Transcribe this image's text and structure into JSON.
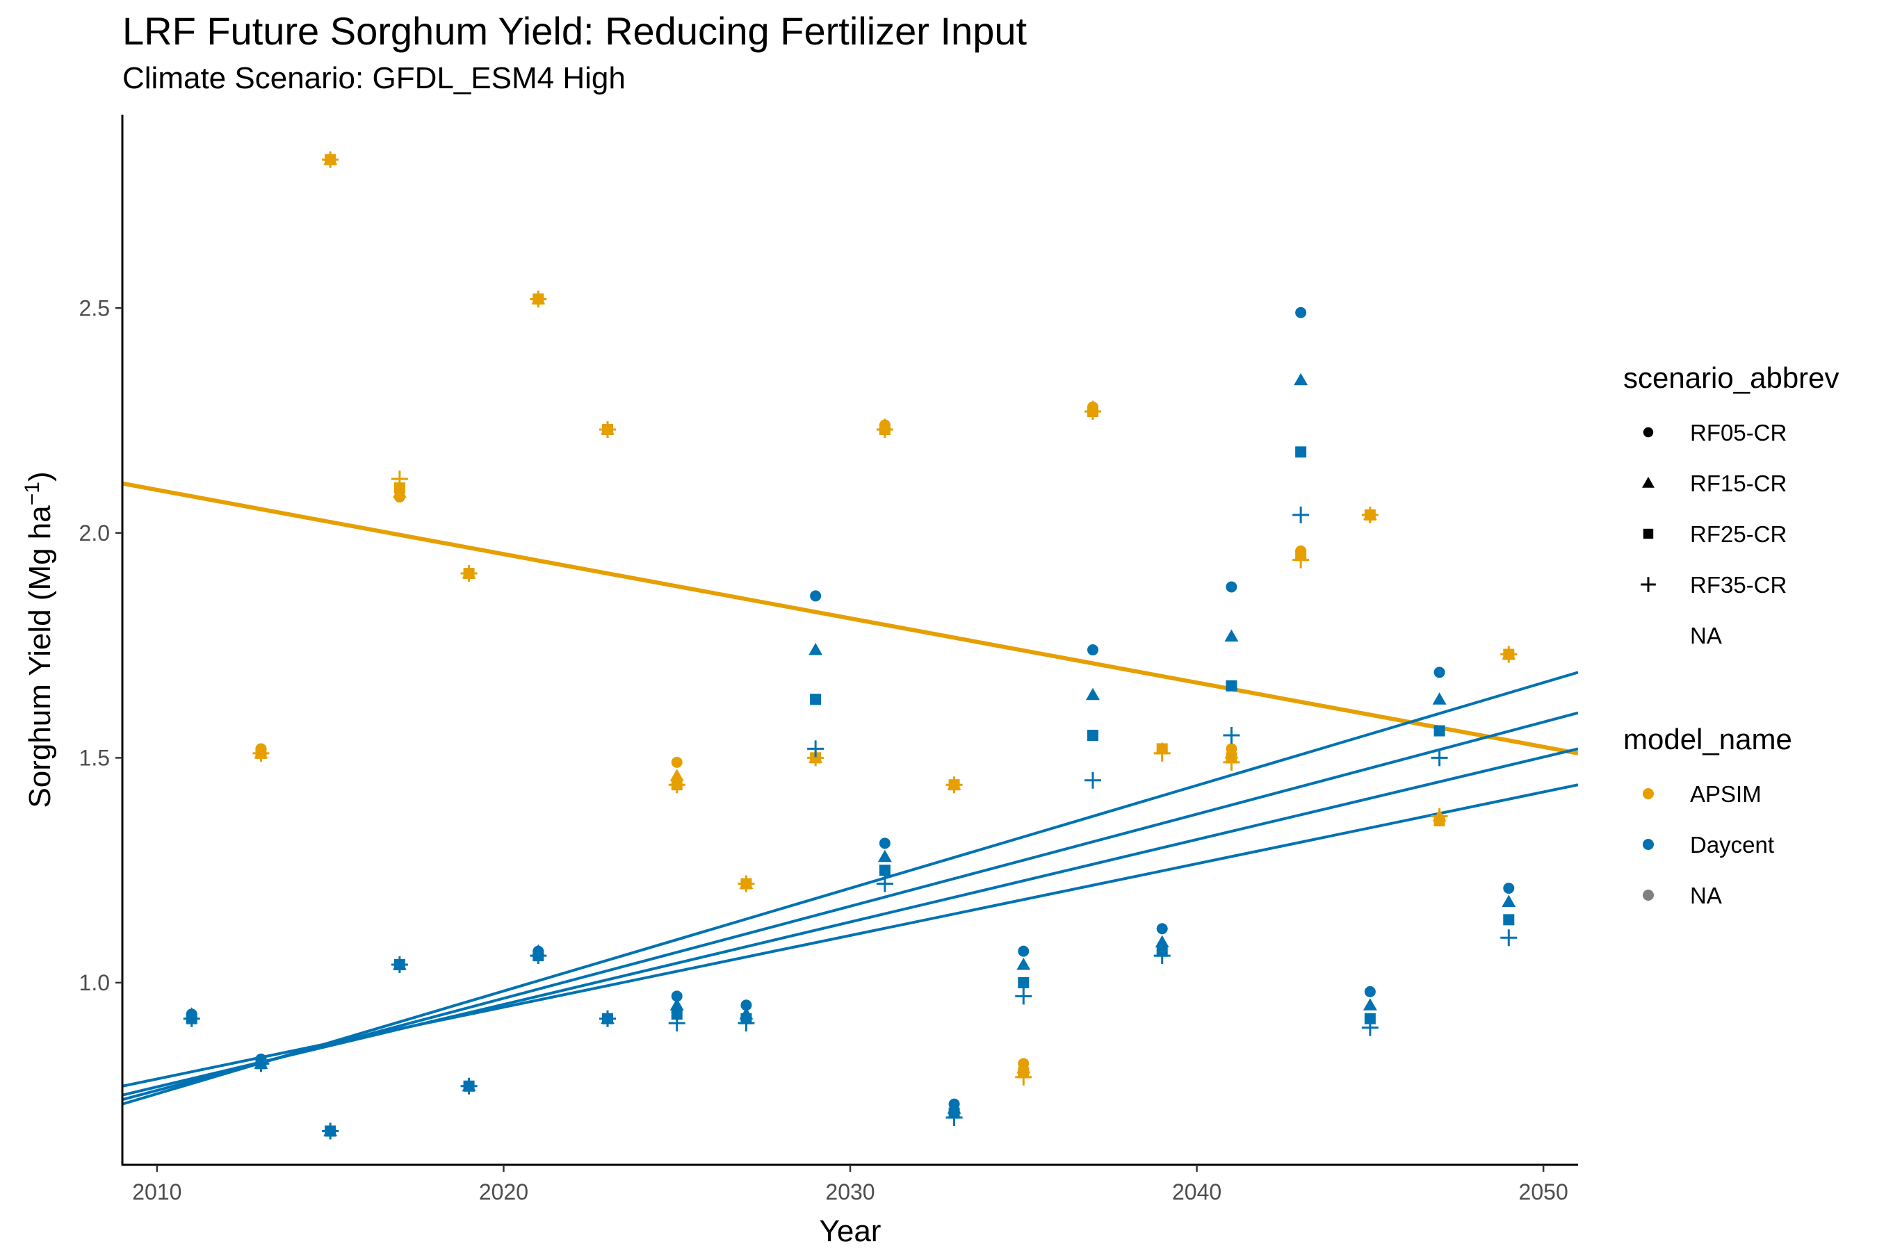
{
  "chart_data": {
    "type": "scatter",
    "title": "LRF Future Sorghum Yield: Reducing Fertilizer Input",
    "subtitle": "Climate Scenario: GFDL_ESM4 High",
    "xlabel": "Year",
    "ylabel_main": "Sorghum Yield (Mg ha",
    "ylabel_sup": "−1",
    "ylabel_close": ")",
    "xlim": [
      2009,
      2051
    ],
    "ylim": [
      0.595,
      2.93
    ],
    "xticks": [
      2010,
      2020,
      2030,
      2040,
      2050
    ],
    "yticks": [
      1.0,
      1.5,
      2.0,
      2.5
    ],
    "ytick_labels": [
      "1.0",
      "1.5",
      "2.0",
      "2.5"
    ],
    "grid": false,
    "legend_position": "right",
    "colors": {
      "APSIM": "#E69F00",
      "Daycent": "#0072B2",
      "NA": "#808080"
    },
    "shape_legend": {
      "title": "scenario_abbrev",
      "items": [
        {
          "label": "RF05-CR",
          "shape": "circle"
        },
        {
          "label": "RF15-CR",
          "shape": "triangle"
        },
        {
          "label": "RF25-CR",
          "shape": "square"
        },
        {
          "label": "RF35-CR",
          "shape": "plus"
        },
        {
          "label": "NA",
          "shape": "none"
        }
      ]
    },
    "color_legend": {
      "title": "model_name",
      "items": [
        {
          "label": "APSIM",
          "color": "#E69F00"
        },
        {
          "label": "Daycent",
          "color": "#0072B2"
        },
        {
          "label": "NA",
          "color": "#808080"
        }
      ]
    },
    "series": [
      {
        "model": "APSIM",
        "scenario": "RF05-CR",
        "shape": "circle",
        "points": [
          [
            2013,
            1.52
          ],
          [
            2015,
            2.83
          ],
          [
            2017,
            2.08
          ],
          [
            2019,
            1.91
          ],
          [
            2021,
            2.52
          ],
          [
            2023,
            2.23
          ],
          [
            2025,
            1.49
          ],
          [
            2027,
            1.22
          ],
          [
            2029,
            1.5
          ],
          [
            2031,
            2.24
          ],
          [
            2033,
            1.44
          ],
          [
            2035,
            0.82
          ],
          [
            2037,
            2.28
          ],
          [
            2039,
            1.52
          ],
          [
            2041,
            1.52
          ],
          [
            2043,
            1.96
          ],
          [
            2045,
            2.04
          ],
          [
            2047,
            1.36
          ],
          [
            2049,
            1.73
          ]
        ]
      },
      {
        "model": "APSIM",
        "scenario": "RF15-CR",
        "shape": "triangle",
        "points": [
          [
            2013,
            1.51
          ],
          [
            2015,
            2.83
          ],
          [
            2017,
            2.09
          ],
          [
            2019,
            1.91
          ],
          [
            2021,
            2.52
          ],
          [
            2023,
            2.23
          ],
          [
            2025,
            1.46
          ],
          [
            2027,
            1.22
          ],
          [
            2029,
            1.5
          ],
          [
            2031,
            2.24
          ],
          [
            2033,
            1.44
          ],
          [
            2035,
            0.81
          ],
          [
            2037,
            2.28
          ],
          [
            2039,
            1.52
          ],
          [
            2041,
            1.51
          ],
          [
            2043,
            1.95
          ],
          [
            2045,
            2.04
          ],
          [
            2047,
            1.37
          ],
          [
            2049,
            1.73
          ]
        ]
      },
      {
        "model": "APSIM",
        "scenario": "RF25-CR",
        "shape": "square",
        "points": [
          [
            2013,
            1.51
          ],
          [
            2015,
            2.83
          ],
          [
            2017,
            2.1
          ],
          [
            2019,
            1.91
          ],
          [
            2021,
            2.52
          ],
          [
            2023,
            2.23
          ],
          [
            2025,
            1.44
          ],
          [
            2027,
            1.22
          ],
          [
            2029,
            1.5
          ],
          [
            2031,
            2.23
          ],
          [
            2033,
            1.44
          ],
          [
            2035,
            0.8
          ],
          [
            2037,
            2.27
          ],
          [
            2039,
            1.52
          ],
          [
            2041,
            1.5
          ],
          [
            2043,
            1.95
          ],
          [
            2045,
            2.04
          ],
          [
            2047,
            1.36
          ],
          [
            2049,
            1.73
          ]
        ]
      },
      {
        "model": "APSIM",
        "scenario": "RF35-CR",
        "shape": "plus",
        "points": [
          [
            2013,
            1.51
          ],
          [
            2015,
            2.83
          ],
          [
            2017,
            2.12
          ],
          [
            2019,
            1.91
          ],
          [
            2021,
            2.52
          ],
          [
            2023,
            2.23
          ],
          [
            2025,
            1.44
          ],
          [
            2027,
            1.22
          ],
          [
            2029,
            1.5
          ],
          [
            2031,
            2.23
          ],
          [
            2033,
            1.44
          ],
          [
            2035,
            0.79
          ],
          [
            2037,
            2.27
          ],
          [
            2039,
            1.51
          ],
          [
            2041,
            1.49
          ],
          [
            2043,
            1.94
          ],
          [
            2045,
            2.04
          ],
          [
            2047,
            1.37
          ],
          [
            2049,
            1.73
          ]
        ]
      },
      {
        "model": "Daycent",
        "scenario": "RF05-CR",
        "shape": "circle",
        "points": [
          [
            2011,
            0.93
          ],
          [
            2013,
            0.83
          ],
          [
            2015,
            0.67
          ],
          [
            2017,
            1.04
          ],
          [
            2019,
            0.77
          ],
          [
            2021,
            1.07
          ],
          [
            2023,
            0.92
          ],
          [
            2025,
            0.97
          ],
          [
            2027,
            0.95
          ],
          [
            2029,
            1.86
          ],
          [
            2031,
            1.31
          ],
          [
            2033,
            0.73
          ],
          [
            2035,
            1.07
          ],
          [
            2037,
            1.74
          ],
          [
            2039,
            1.12
          ],
          [
            2041,
            1.88
          ],
          [
            2043,
            2.49
          ],
          [
            2045,
            0.98
          ],
          [
            2047,
            1.69
          ],
          [
            2049,
            1.21
          ]
        ]
      },
      {
        "model": "Daycent",
        "scenario": "RF15-CR",
        "shape": "triangle",
        "points": [
          [
            2011,
            0.93
          ],
          [
            2013,
            0.82
          ],
          [
            2015,
            0.67
          ],
          [
            2017,
            1.04
          ],
          [
            2019,
            0.77
          ],
          [
            2021,
            1.07
          ],
          [
            2023,
            0.92
          ],
          [
            2025,
            0.95
          ],
          [
            2027,
            0.93
          ],
          [
            2029,
            1.74
          ],
          [
            2031,
            1.28
          ],
          [
            2033,
            0.72
          ],
          [
            2035,
            1.04
          ],
          [
            2037,
            1.64
          ],
          [
            2039,
            1.09
          ],
          [
            2041,
            1.77
          ],
          [
            2043,
            2.34
          ],
          [
            2045,
            0.95
          ],
          [
            2047,
            1.63
          ],
          [
            2049,
            1.18
          ]
        ]
      },
      {
        "model": "Daycent",
        "scenario": "RF25-CR",
        "shape": "square",
        "points": [
          [
            2011,
            0.92
          ],
          [
            2013,
            0.82
          ],
          [
            2015,
            0.67
          ],
          [
            2017,
            1.04
          ],
          [
            2019,
            0.77
          ],
          [
            2021,
            1.06
          ],
          [
            2023,
            0.92
          ],
          [
            2025,
            0.93
          ],
          [
            2027,
            0.92
          ],
          [
            2029,
            1.63
          ],
          [
            2031,
            1.25
          ],
          [
            2033,
            0.71
          ],
          [
            2035,
            1.0
          ],
          [
            2037,
            1.55
          ],
          [
            2039,
            1.07
          ],
          [
            2041,
            1.66
          ],
          [
            2043,
            2.18
          ],
          [
            2045,
            0.92
          ],
          [
            2047,
            1.56
          ],
          [
            2049,
            1.14
          ]
        ]
      },
      {
        "model": "Daycent",
        "scenario": "RF35-CR",
        "shape": "plus",
        "points": [
          [
            2011,
            0.92
          ],
          [
            2013,
            0.82
          ],
          [
            2015,
            0.67
          ],
          [
            2017,
            1.04
          ],
          [
            2019,
            0.77
          ],
          [
            2021,
            1.06
          ],
          [
            2023,
            0.92
          ],
          [
            2025,
            0.91
          ],
          [
            2027,
            0.91
          ],
          [
            2029,
            1.52
          ],
          [
            2031,
            1.22
          ],
          [
            2033,
            0.7
          ],
          [
            2035,
            0.97
          ],
          [
            2037,
            1.45
          ],
          [
            2039,
            1.06
          ],
          [
            2041,
            1.55
          ],
          [
            2043,
            2.04
          ],
          [
            2045,
            0.9
          ],
          [
            2047,
            1.5
          ],
          [
            2049,
            1.1
          ]
        ]
      }
    ],
    "trend_lines": [
      {
        "model": "APSIM",
        "scenario": "all",
        "x": [
          2009,
          2051
        ],
        "y": [
          2.11,
          1.51
        ]
      },
      {
        "model": "Daycent",
        "scenario": "RF05-CR",
        "x": [
          2009,
          2051
        ],
        "y": [
          0.73,
          1.69
        ]
      },
      {
        "model": "Daycent",
        "scenario": "RF15-CR",
        "x": [
          2009,
          2051
        ],
        "y": [
          0.74,
          1.6
        ]
      },
      {
        "model": "Daycent",
        "scenario": "RF25-CR",
        "x": [
          2009,
          2051
        ],
        "y": [
          0.75,
          1.52
        ]
      },
      {
        "model": "Daycent",
        "scenario": "RF35-CR",
        "x": [
          2009,
          2051
        ],
        "y": [
          0.77,
          1.44
        ]
      }
    ]
  }
}
